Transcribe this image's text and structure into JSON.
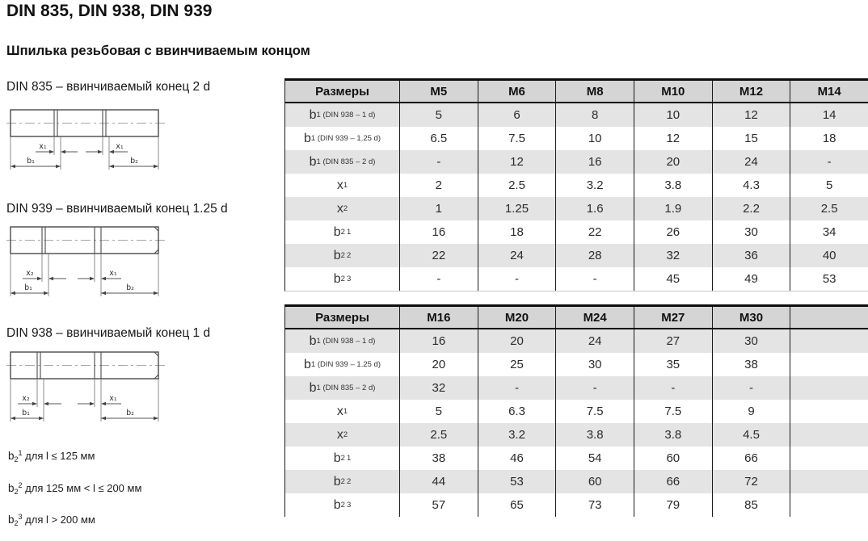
{
  "page": {
    "title": "DIN 835, DIN 938, DIN 939",
    "subtitle": "Шпилька резьбовая с ввинчиваемым концом"
  },
  "drawings": [
    {
      "caption": "DIN 835 – ввинчиваемый конец 2 d",
      "labels": {
        "x_left": "x₁",
        "x_right": "x₁",
        "b_left": "b₁",
        "b_right": "b₂"
      }
    },
    {
      "caption": "DIN 939 – ввинчиваемый конец 1.25 d",
      "labels": {
        "x_left": "x₂",
        "x_right": "x₁",
        "b_left": "b₁",
        "b_right": "b₂"
      }
    },
    {
      "caption": "DIN 938 – ввинчиваемый конец 1 d",
      "labels": {
        "x_left": "x₂",
        "x_right": "x₁",
        "b_left": "b₁",
        "b_right": "b₂"
      }
    }
  ],
  "footnotes": [
    {
      "main": "b",
      "sub": "2",
      "sup": "1",
      "text": " для l ≤ 125 мм"
    },
    {
      "main": "b",
      "sub": "2",
      "sup": "2",
      "text": " для 125 мм < l ≤ 200 мм"
    },
    {
      "main": "b",
      "sub": "2",
      "sup": "3",
      "text": " для l > 200 мм"
    }
  ],
  "tables": [
    {
      "header": [
        "Размеры",
        "M5",
        "M6",
        "M8",
        "M10",
        "M12",
        "M14"
      ],
      "rows": [
        {
          "label": {
            "main": "b",
            "sub": "1 (DIN 938 – 1 d)",
            "sup": ""
          },
          "values": [
            "5",
            "6",
            "8",
            "10",
            "12",
            "14"
          ],
          "shaded": true
        },
        {
          "label": {
            "main": "b",
            "sub": "1 (DIN 939 – 1.25 d)",
            "sup": ""
          },
          "values": [
            "6.5",
            "7.5",
            "10",
            "12",
            "15",
            "18"
          ],
          "shaded": false
        },
        {
          "label": {
            "main": "b",
            "sub": "1 (DIN 835 – 2 d)",
            "sup": ""
          },
          "values": [
            "-",
            "12",
            "16",
            "20",
            "24",
            "-"
          ],
          "shaded": true
        },
        {
          "label": {
            "main": "x",
            "sub": "1",
            "sup": ""
          },
          "values": [
            "2",
            "2.5",
            "3.2",
            "3.8",
            "4.3",
            "5"
          ],
          "shaded": false
        },
        {
          "label": {
            "main": "x",
            "sub": "2",
            "sup": ""
          },
          "values": [
            "1",
            "1.25",
            "1.6",
            "1.9",
            "2.2",
            "2.5"
          ],
          "shaded": true
        },
        {
          "label": {
            "main": "b",
            "sub": "2",
            "sup": "1"
          },
          "values": [
            "16",
            "18",
            "22",
            "26",
            "30",
            "34"
          ],
          "shaded": false
        },
        {
          "label": {
            "main": "b",
            "sub": "2",
            "sup": "2"
          },
          "values": [
            "22",
            "24",
            "28",
            "32",
            "36",
            "40"
          ],
          "shaded": true
        },
        {
          "label": {
            "main": "b",
            "sub": "2",
            "sup": "3"
          },
          "values": [
            "-",
            "-",
            "-",
            "45",
            "49",
            "53"
          ],
          "shaded": false
        }
      ]
    },
    {
      "header": [
        "Размеры",
        "M16",
        "M20",
        "M24",
        "M27",
        "M30",
        ""
      ],
      "rows": [
        {
          "label": {
            "main": "b",
            "sub": "1 (DIN 938 – 1 d)",
            "sup": ""
          },
          "values": [
            "16",
            "20",
            "24",
            "27",
            "30",
            ""
          ],
          "shaded": true
        },
        {
          "label": {
            "main": "b",
            "sub": "1 (DIN 939 – 1.25 d)",
            "sup": ""
          },
          "values": [
            "20",
            "25",
            "30",
            "35",
            "38",
            ""
          ],
          "shaded": false
        },
        {
          "label": {
            "main": "b",
            "sub": "1 (DIN 835 – 2 d)",
            "sup": ""
          },
          "values": [
            "32",
            "-",
            "-",
            "-",
            "-",
            ""
          ],
          "shaded": true
        },
        {
          "label": {
            "main": "x",
            "sub": "1",
            "sup": ""
          },
          "values": [
            "5",
            "6.3",
            "7.5",
            "7.5",
            "9",
            ""
          ],
          "shaded": false
        },
        {
          "label": {
            "main": "x",
            "sub": "2",
            "sup": ""
          },
          "values": [
            "2.5",
            "3.2",
            "3.8",
            "3.8",
            "4.5",
            ""
          ],
          "shaded": true
        },
        {
          "label": {
            "main": "b",
            "sub": "2",
            "sup": "1"
          },
          "values": [
            "38",
            "46",
            "54",
            "60",
            "66",
            ""
          ],
          "shaded": false
        },
        {
          "label": {
            "main": "b",
            "sub": "2",
            "sup": "2"
          },
          "values": [
            "44",
            "53",
            "60",
            "66",
            "72",
            ""
          ],
          "shaded": true
        },
        {
          "label": {
            "main": "b",
            "sub": "2",
            "sup": "3"
          },
          "values": [
            "57",
            "65",
            "73",
            "79",
            "85",
            ""
          ],
          "shaded": false
        }
      ]
    }
  ],
  "colors": {
    "table_header_bg": "#d5d5d5",
    "row_stripe_bg": "#e4e4e4",
    "table_border": "#1a1a1a",
    "text": "#1a1a1a"
  }
}
